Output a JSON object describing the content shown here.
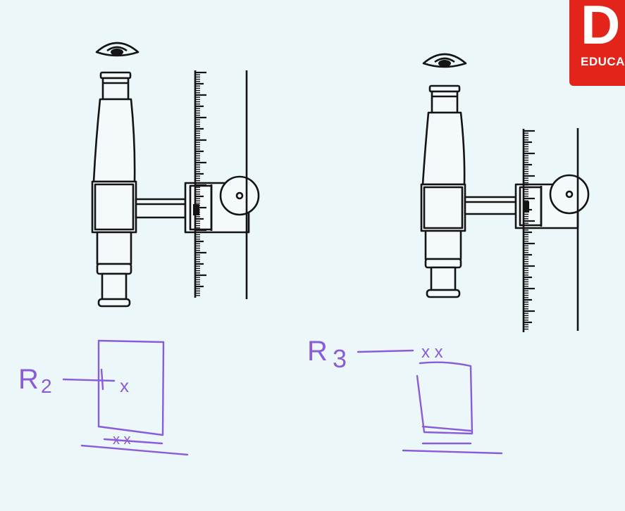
{
  "logo": {
    "mark": "D",
    "subtitle": "EDUCA",
    "bg_color": "#e3241b"
  },
  "annotations": {
    "left_label_main": "R",
    "left_label_sub": "2",
    "left_mark": "x",
    "left_bottom_marks": "x x",
    "right_label_main": "R",
    "right_label_sub": "3",
    "right_top_marks": "x x"
  },
  "colors": {
    "ink": "#141414",
    "pen": "#8a5cd9",
    "background": "#ecf7f9"
  }
}
